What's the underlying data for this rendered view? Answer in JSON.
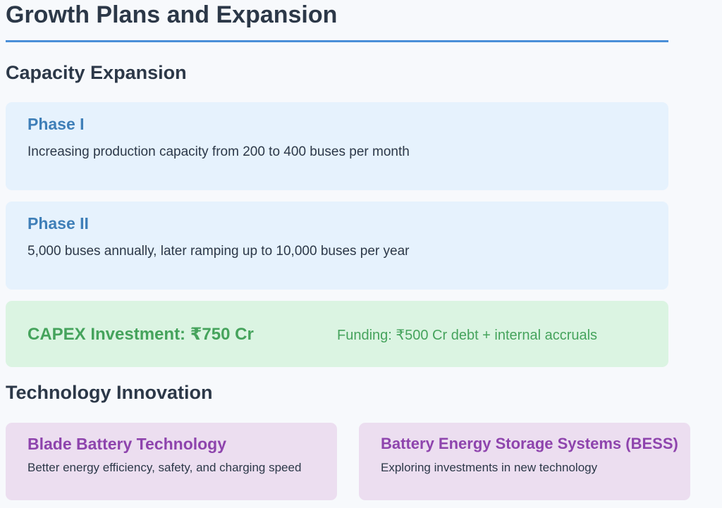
{
  "page": {
    "title": "Growth Plans and Expansion"
  },
  "capacity": {
    "heading": "Capacity Expansion",
    "phases": [
      {
        "title": "Phase I",
        "text": "Increasing production capacity from 200 to 400 buses per month"
      },
      {
        "title": "Phase II",
        "text": "5,000 buses annually, later ramping up to 10,000 buses per year"
      }
    ],
    "capex": {
      "title": "CAPEX Investment: ₹750 Cr",
      "funding": "Funding: ₹500 Cr debt + internal accruals"
    }
  },
  "technology": {
    "heading": "Technology Innovation",
    "cards": [
      {
        "title": "Blade Battery Technology",
        "text": "Better energy efficiency, safety, and charging speed"
      },
      {
        "title": "Battery Energy Storage Systems (BESS)",
        "text": "Exploring investments in new technology"
      }
    ]
  },
  "colors": {
    "accent_blue": "#4a8fd8",
    "phase_title": "#3f7fb8",
    "phase_bg": "#e6f2fd",
    "capex_green": "#45a35c",
    "capex_bg": "#dbf4e2",
    "tech_purple": "#8e44ad",
    "tech_bg": "#ecdef0"
  }
}
